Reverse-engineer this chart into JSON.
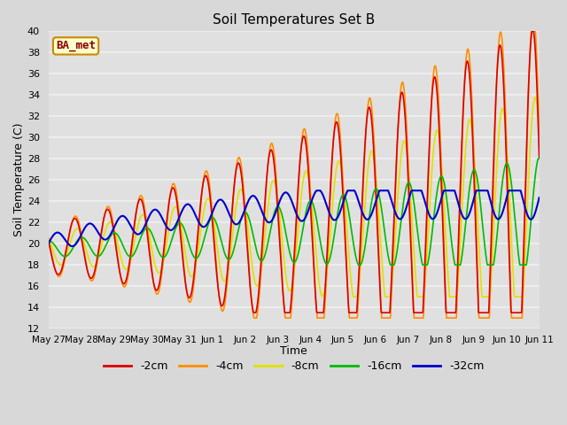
{
  "title": "Soil Temperatures Set B",
  "xlabel": "Time",
  "ylabel": "Soil Temperature (C)",
  "ylim": [
    12,
    40
  ],
  "yticks": [
    12,
    14,
    16,
    18,
    20,
    22,
    24,
    26,
    28,
    30,
    32,
    34,
    36,
    38,
    40
  ],
  "legend_label": "BA_met",
  "series": {
    "-2cm": {
      "color": "#dd0000",
      "lw": 1.2
    },
    "-4cm": {
      "color": "#ff8c00",
      "lw": 1.2
    },
    "-8cm": {
      "color": "#e0e000",
      "lw": 1.2
    },
    "-16cm": {
      "color": "#00bb00",
      "lw": 1.2
    },
    "-32cm": {
      "color": "#0000cc",
      "lw": 1.5
    }
  },
  "figsize": [
    6.4,
    4.8
  ],
  "dpi": 100,
  "background_color": "#d8d8d8",
  "plot_bg_color": "#e0e0e0",
  "grid_color": "#f0f0f0",
  "num_days": 15,
  "points_per_day": 96,
  "tick_labels": [
    "May 27",
    "May 28",
    "May 29",
    "May 30",
    "May 31",
    "Jun 1",
    "Jun 2",
    "Jun 3",
    "Jun 4",
    "Jun 5",
    "Jun 6",
    "Jun 7",
    "Jun 8",
    "Jun 9",
    "Jun 10",
    "Jun 11"
  ]
}
